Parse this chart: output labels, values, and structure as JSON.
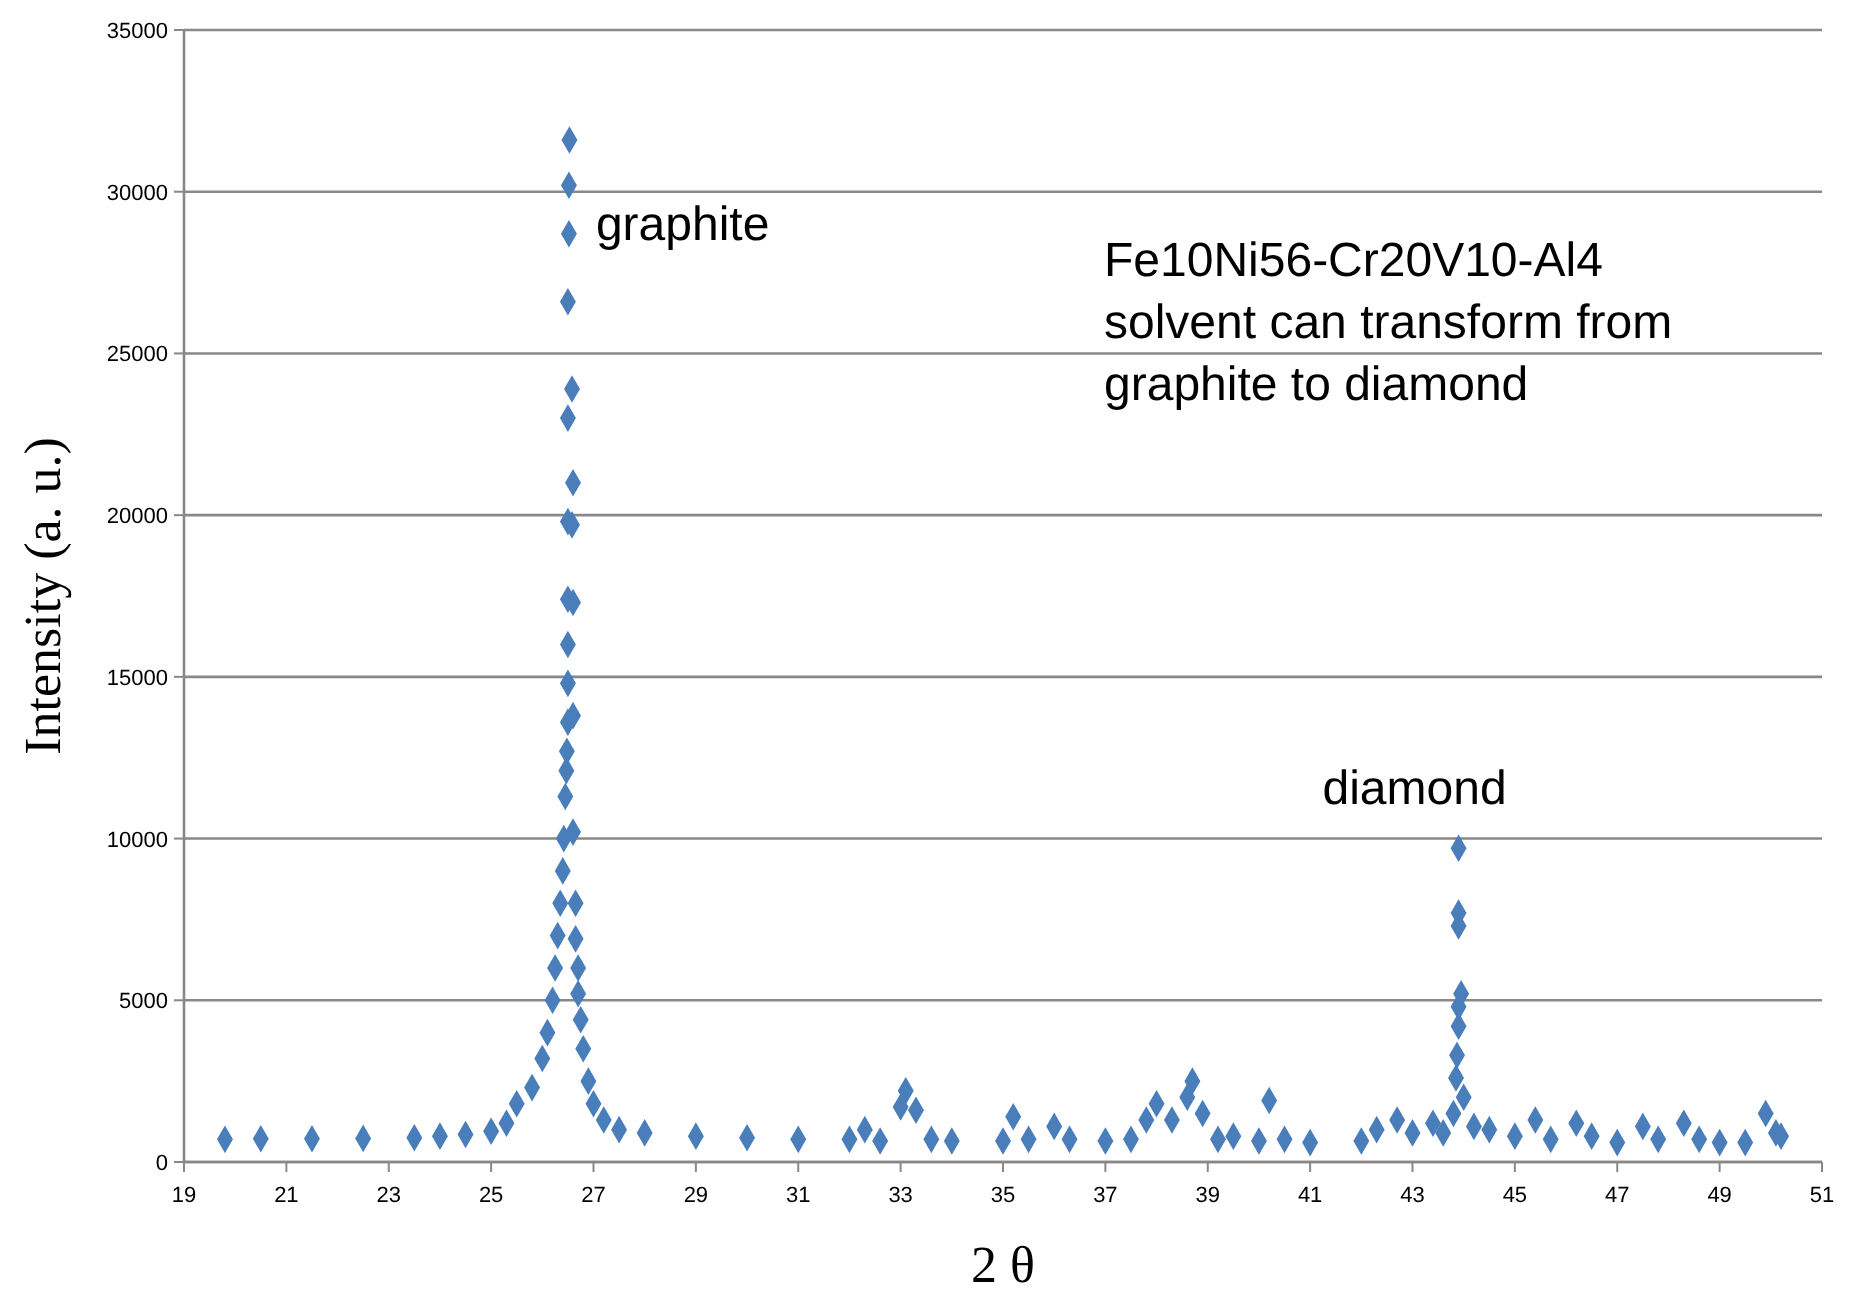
{
  "chart_data": {
    "type": "scatter",
    "xlabel": "2 θ",
    "ylabel": "Intensity (a. u.)",
    "xlim": [
      19,
      51
    ],
    "xticks": [
      19,
      21,
      23,
      25,
      27,
      29,
      31,
      33,
      35,
      37,
      39,
      41,
      43,
      45,
      47,
      49,
      51
    ],
    "ylim": [
      0,
      35000
    ],
    "yticks": [
      0,
      5000,
      10000,
      15000,
      20000,
      25000,
      30000,
      35000
    ],
    "grid": "y",
    "marker": "diamond",
    "annotations": [
      {
        "text": "graphite",
        "x": 26.5,
        "y": 29000
      },
      {
        "text": "diamond",
        "x": 43.9,
        "y": 9700
      },
      "Fe10Ni56-Cr20V10-Al4 solvent can transform from graphite to diamond"
    ],
    "series": [
      {
        "color": "#4a7ebb",
        "x": [
          19.8,
          20.5,
          21.5,
          22.5,
          23.5,
          24,
          24.5,
          25,
          25.3,
          25.5,
          25.8,
          26.0,
          26.1,
          26.2,
          26.25,
          26.3,
          26.35,
          26.4,
          26.42,
          26.45,
          26.47,
          26.48,
          26.5,
          26.5,
          26.5,
          26.5,
          26.5,
          26.5,
          26.5,
          26.52,
          26.52,
          26.53,
          26.58,
          26.6,
          26.58,
          26.6,
          26.6,
          26.6,
          26.65,
          26.65,
          26.7,
          26.7,
          26.75,
          26.8,
          26.9,
          27,
          27.2,
          27.5,
          28,
          29,
          30,
          31,
          32,
          32.3,
          32.6,
          33,
          33.1,
          33.3,
          33.6,
          34,
          35,
          35.2,
          35.5,
          36,
          36.3,
          37,
          37.5,
          37.8,
          38,
          38.3,
          38.6,
          38.7,
          38.9,
          39.2,
          39.5,
          40,
          40.2,
          40.5,
          41,
          42,
          42.3,
          42.7,
          43,
          43.4,
          43.6,
          43.8,
          43.85,
          43.87,
          43.9,
          43.9,
          43.95,
          43.9,
          43.9,
          43.9,
          44,
          44.2,
          44.5,
          45,
          45.4,
          45.7,
          46.2,
          46.5,
          47,
          47.5,
          47.8,
          48.3,
          48.6,
          49,
          49.5,
          49.9,
          50.1,
          50.2
        ],
        "values": [
          700,
          720,
          720,
          730,
          750,
          800,
          850,
          950,
          1200,
          1800,
          2300,
          3200,
          4000,
          5000,
          6000,
          7000,
          8000,
          9000,
          10000,
          11300,
          12100,
          12700,
          13600,
          14800,
          16000,
          17400,
          19800,
          23000,
          26600,
          28700,
          30200,
          31600,
          23900,
          21000,
          19700,
          17300,
          13800,
          10200,
          8000,
          6900,
          6000,
          5200,
          4400,
          3500,
          2500,
          1800,
          1300,
          1000,
          900,
          800,
          750,
          700,
          700,
          1000,
          650,
          1700,
          2200,
          1600,
          700,
          650,
          650,
          1400,
          700,
          1100,
          700,
          650,
          700,
          1300,
          1800,
          1300,
          2000,
          2500,
          1500,
          700,
          800,
          650,
          1900,
          700,
          600,
          650,
          1000,
          1300,
          900,
          1200,
          900,
          1500,
          2600,
          3300,
          4200,
          4800,
          5200,
          7300,
          7700,
          9700,
          2000,
          1100,
          1000,
          800,
          1300,
          700,
          1200,
          800,
          600,
          1100,
          700,
          1200,
          700,
          600,
          600,
          1500,
          900,
          800
        ]
      }
    ]
  }
}
